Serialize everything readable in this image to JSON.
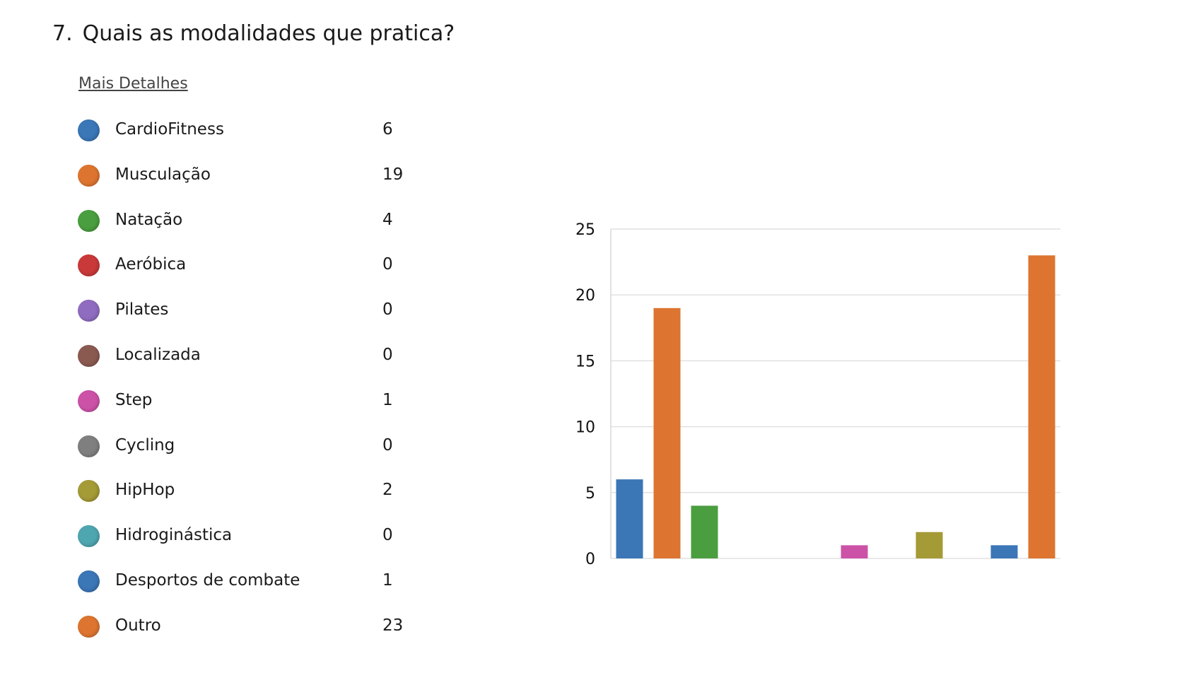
{
  "question": {
    "number": "7.",
    "text": "Quais as modalidades que pratica?",
    "details_link": "Mais Detalhes"
  },
  "legend": [
    {
      "label": "CardioFitness",
      "count": "6",
      "color": "#3b76b7"
    },
    {
      "label": "Musculação",
      "count": "19",
      "color": "#dd7530"
    },
    {
      "label": "Natação",
      "count": "4",
      "color": "#4a9e3f"
    },
    {
      "label": "Aeróbica",
      "count": "0",
      "color": "#c9393a"
    },
    {
      "label": "Pilates",
      "count": "0",
      "color": "#8f6cbf"
    },
    {
      "label": "Localizada",
      "count": "0",
      "color": "#8a5a50"
    },
    {
      "label": "Step",
      "count": "1",
      "color": "#cc52a8"
    },
    {
      "label": "Cycling",
      "count": "0",
      "color": "#7f7f7f"
    },
    {
      "label": "HipHop",
      "count": "2",
      "color": "#a49a36"
    },
    {
      "label": "Hidroginástica",
      "count": "0",
      "color": "#4ea6b0"
    },
    {
      "label": "Desportos de combate",
      "count": "1",
      "color": "#3b76b7"
    },
    {
      "label": "Outro",
      "count": "23",
      "color": "#dd7530"
    }
  ],
  "chart_data": {
    "type": "bar",
    "categories": [
      "CardioFitness",
      "Musculação",
      "Natação",
      "Aeróbica",
      "Pilates",
      "Localizada",
      "Step",
      "Cycling",
      "HipHop",
      "Hidroginástica",
      "Desportos de combate",
      "Outro"
    ],
    "values": [
      6,
      19,
      4,
      0,
      0,
      0,
      1,
      0,
      2,
      0,
      1,
      23
    ],
    "colors": [
      "#3b76b7",
      "#dd7530",
      "#4a9e3f",
      "#c9393a",
      "#8f6cbf",
      "#8a5a50",
      "#cc52a8",
      "#7f7f7f",
      "#a49a36",
      "#4ea6b0",
      "#3b76b7",
      "#dd7530"
    ],
    "ylim": [
      0,
      25
    ],
    "yticks": [
      0,
      5,
      10,
      15,
      20,
      25
    ],
    "grid": true,
    "title": "",
    "xlabel": "",
    "ylabel": ""
  }
}
